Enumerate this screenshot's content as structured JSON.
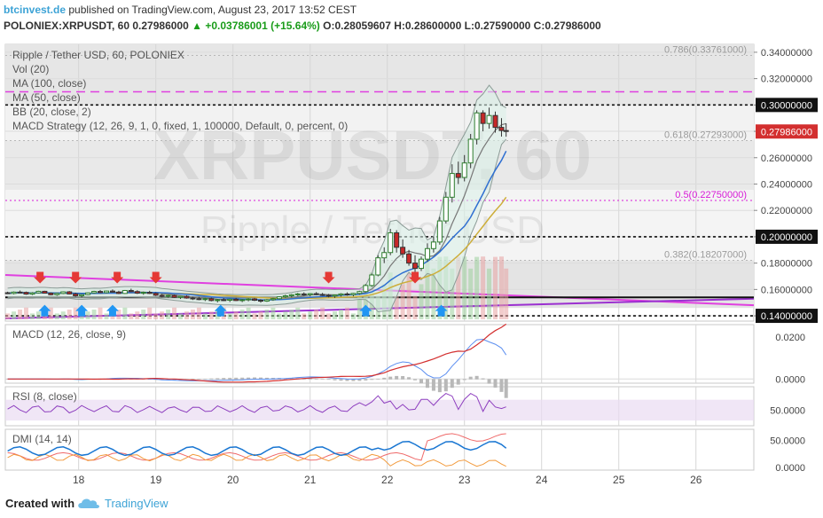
{
  "header": {
    "site": "btcinvest.de",
    "published": "published on TradingView.com, August 23, 2017 13:52 CEST",
    "symbol": "POLONIEX:XRPUSDT, 60",
    "last": "0.27986000",
    "change_arrow": "▲",
    "change": "+0.03786001 (+15.64%)",
    "ohlc": "O:0.28059607 H:0.28600000 L:0.27590000 C:0.27986000"
  },
  "footer": {
    "created_with": "Created with",
    "tradingview": "TradingView"
  },
  "chart_data": {
    "type": "candlestick",
    "watermark": "XRPUSDT, 60",
    "watermark_sub": "Ripple / Tether USD",
    "main": {
      "title": "Ripple / Tether USD, 60, POLONIEX",
      "indicators": [
        "Vol (20)",
        "MA (100, close)",
        "MA (50, close)",
        "BB (20, close, 2)",
        "MACD Strategy (12, 26, 9, 1, 0, fixed, 1, 100000, Default, 0, percent, 0)"
      ],
      "ylim": [
        0.136,
        0.346
      ],
      "yticks": [
        "0.34000000",
        "0.32000000",
        "0.30000000",
        "0.28000000",
        "0.26000000",
        "0.24000000",
        "0.22000000",
        "0.20000000",
        "0.18000000",
        "0.16000000",
        "0.14000000"
      ],
      "price_tag": "0.27986000",
      "fib_levels": [
        {
          "label": "0.786(0.33761000)",
          "value": 0.33761
        },
        {
          "label": "0.618(0.27293000)",
          "value": 0.27293
        },
        {
          "label": "0.5(0.22750000)",
          "value": 0.2275
        },
        {
          "label": "0.382(0.18207000)",
          "value": 0.18207
        }
      ],
      "hlines": [
        0.3,
        0.2,
        0.14
      ],
      "resistance_dashed": 0.31,
      "x_labels": [
        "18",
        "19",
        "20",
        "21",
        "22",
        "23",
        "24",
        "25",
        "26"
      ],
      "x_label_days": [
        18,
        19,
        20,
        21,
        22,
        23,
        24,
        25,
        26
      ],
      "x_range": [
        17.05,
        26.75
      ],
      "candles": [
        [
          17.08,
          0.1575,
          0.1583,
          0.1565,
          0.157
        ],
        [
          17.16,
          0.157,
          0.1585,
          0.1563,
          0.158
        ],
        [
          17.24,
          0.158,
          0.1592,
          0.1572,
          0.1578
        ],
        [
          17.32,
          0.1578,
          0.1584,
          0.156,
          0.1565
        ],
        [
          17.4,
          0.1565,
          0.158,
          0.1558,
          0.1574
        ],
        [
          17.48,
          0.1574,
          0.159,
          0.157,
          0.1586
        ],
        [
          17.56,
          0.1586,
          0.159,
          0.157,
          0.1572
        ],
        [
          17.64,
          0.1572,
          0.1578,
          0.1555,
          0.156
        ],
        [
          17.72,
          0.156,
          0.1575,
          0.1552,
          0.157
        ],
        [
          17.8,
          0.157,
          0.1586,
          0.1565,
          0.1582
        ],
        [
          17.88,
          0.1582,
          0.1588,
          0.1562,
          0.1566
        ],
        [
          17.96,
          0.1566,
          0.1575,
          0.1545,
          0.1552
        ],
        [
          18.04,
          0.1552,
          0.1566,
          0.154,
          0.1561
        ],
        [
          18.12,
          0.1561,
          0.1578,
          0.1556,
          0.1574
        ],
        [
          18.2,
          0.1574,
          0.159,
          0.1568,
          0.1585
        ],
        [
          18.28,
          0.1585,
          0.1596,
          0.1572,
          0.1576
        ],
        [
          18.36,
          0.1576,
          0.1592,
          0.157,
          0.1588
        ],
        [
          18.44,
          0.1588,
          0.16,
          0.1578,
          0.158
        ],
        [
          18.52,
          0.158,
          0.159,
          0.1565,
          0.157
        ],
        [
          18.6,
          0.157,
          0.1596,
          0.1566,
          0.1592
        ],
        [
          18.68,
          0.1592,
          0.1606,
          0.158,
          0.1584
        ],
        [
          18.76,
          0.1584,
          0.1594,
          0.1566,
          0.1572
        ],
        [
          18.84,
          0.1572,
          0.1584,
          0.156,
          0.1578
        ],
        [
          18.92,
          0.1578,
          0.159,
          0.1566,
          0.157
        ],
        [
          19.0,
          0.157,
          0.1578,
          0.155,
          0.1556
        ],
        [
          19.08,
          0.1556,
          0.1566,
          0.154,
          0.1548
        ],
        [
          19.16,
          0.1548,
          0.156,
          0.1538,
          0.1555
        ],
        [
          19.24,
          0.1555,
          0.1562,
          0.1536,
          0.154
        ],
        [
          19.32,
          0.154,
          0.1552,
          0.1528,
          0.1548
        ],
        [
          19.4,
          0.1548,
          0.1556,
          0.153,
          0.1535
        ],
        [
          19.48,
          0.1535,
          0.1545,
          0.152,
          0.153
        ],
        [
          19.56,
          0.153,
          0.1544,
          0.1518,
          0.1524
        ],
        [
          19.64,
          0.1524,
          0.1536,
          0.1512,
          0.153
        ],
        [
          19.72,
          0.153,
          0.1538,
          0.151,
          0.1516
        ],
        [
          19.8,
          0.1516,
          0.1528,
          0.1502,
          0.1522
        ],
        [
          19.88,
          0.1522,
          0.1535,
          0.1512,
          0.1518
        ],
        [
          19.96,
          0.1518,
          0.153,
          0.1505,
          0.1526
        ],
        [
          20.04,
          0.1526,
          0.1536,
          0.1512,
          0.1516
        ],
        [
          20.12,
          0.1516,
          0.1528,
          0.1504,
          0.1522
        ],
        [
          20.2,
          0.1522,
          0.1534,
          0.151,
          0.1528
        ],
        [
          20.28,
          0.1528,
          0.1536,
          0.1512,
          0.1518
        ],
        [
          20.36,
          0.1518,
          0.1526,
          0.15,
          0.1512
        ],
        [
          20.44,
          0.1512,
          0.1528,
          0.1506,
          0.1522
        ],
        [
          20.52,
          0.1522,
          0.1536,
          0.1514,
          0.153
        ],
        [
          20.6,
          0.153,
          0.1548,
          0.1524,
          0.1544
        ],
        [
          20.68,
          0.1544,
          0.156,
          0.1536,
          0.1552
        ],
        [
          20.76,
          0.1552,
          0.1566,
          0.154,
          0.156
        ],
        [
          20.84,
          0.156,
          0.1574,
          0.155,
          0.1566
        ],
        [
          20.92,
          0.1566,
          0.1578,
          0.1552,
          0.156
        ],
        [
          21.0,
          0.156,
          0.1572,
          0.1548,
          0.1568
        ],
        [
          21.08,
          0.1568,
          0.158,
          0.1556,
          0.1562
        ],
        [
          21.16,
          0.1562,
          0.1574,
          0.155,
          0.1556
        ],
        [
          21.24,
          0.1556,
          0.1566,
          0.154,
          0.155
        ],
        [
          21.32,
          0.155,
          0.1562,
          0.1536,
          0.1558
        ],
        [
          21.4,
          0.1558,
          0.1572,
          0.1546,
          0.1566
        ],
        [
          21.48,
          0.1566,
          0.1578,
          0.1552,
          0.156
        ],
        [
          21.56,
          0.156,
          0.1574,
          0.1548,
          0.157
        ],
        [
          21.64,
          0.157,
          0.159,
          0.156,
          0.1584
        ],
        [
          21.72,
          0.1584,
          0.164,
          0.1578,
          0.163
        ],
        [
          21.8,
          0.163,
          0.172,
          0.162,
          0.171
        ],
        [
          21.88,
          0.171,
          0.186,
          0.17,
          0.184
        ],
        [
          21.96,
          0.184,
          0.192,
          0.18,
          0.188
        ],
        [
          22.04,
          0.188,
          0.206,
          0.186,
          0.203
        ],
        [
          22.12,
          0.203,
          0.205,
          0.188,
          0.192
        ],
        [
          22.2,
          0.192,
          0.198,
          0.184,
          0.187
        ],
        [
          22.28,
          0.187,
          0.19,
          0.178,
          0.18
        ],
        [
          22.36,
          0.18,
          0.186,
          0.173,
          0.176
        ],
        [
          22.44,
          0.176,
          0.185,
          0.174,
          0.183
        ],
        [
          22.52,
          0.183,
          0.195,
          0.181,
          0.191
        ],
        [
          22.6,
          0.191,
          0.2,
          0.188,
          0.196
        ],
        [
          22.68,
          0.196,
          0.215,
          0.194,
          0.212
        ],
        [
          22.76,
          0.212,
          0.234,
          0.21,
          0.23
        ],
        [
          22.84,
          0.23,
          0.255,
          0.226,
          0.248
        ],
        [
          22.92,
          0.248,
          0.257,
          0.24,
          0.245
        ],
        [
          23.0,
          0.245,
          0.262,
          0.242,
          0.256
        ],
        [
          23.08,
          0.256,
          0.278,
          0.252,
          0.274
        ],
        [
          23.16,
          0.274,
          0.296,
          0.27,
          0.294
        ],
        [
          23.24,
          0.294,
          0.296,
          0.28,
          0.286
        ],
        [
          23.32,
          0.286,
          0.298,
          0.282,
          0.292
        ],
        [
          23.4,
          0.292,
          0.295,
          0.279,
          0.283
        ],
        [
          23.48,
          0.283,
          0.29,
          0.276,
          0.2806
        ],
        [
          23.54,
          0.2806,
          0.286,
          0.2759,
          0.2799
        ]
      ],
      "sell_markers": [
        17.5,
        17.96,
        18.5,
        19.0,
        21.24,
        22.36
      ],
      "buy_markers": [
        17.56,
        18.04,
        18.44,
        19.84,
        21.72,
        22.7
      ],
      "volume_ylim": [
        0,
        30
      ]
    },
    "macd": {
      "title": "MACD (12, 26, close, 9)",
      "yticks": [
        "0.0200",
        "0.0000"
      ],
      "ylim": [
        -0.002,
        0.026
      ]
    },
    "rsi": {
      "title": "RSI (8, close)",
      "yticks": [
        "50.0000"
      ],
      "ylim": [
        20,
        95
      ]
    },
    "dmi": {
      "title": "DMI (14, 14)",
      "yticks": [
        "50.0000",
        "0.0000"
      ],
      "ylim": [
        -5,
        70
      ]
    }
  },
  "colors": {
    "up": "#2e7d2e",
    "down": "#c62828",
    "buy": "#2196f3",
    "sell": "#e53935",
    "ma100": "#cdae3a",
    "ma50": "#2f6fd1",
    "bb": "#8b9b96",
    "bb_fill": "#d8f0e8",
    "fib_pink": "#d81bd8",
    "trend_magenta": "#e040e0",
    "macd_blue": "#5b8ef0",
    "macd_red": "#d32f2f",
    "rsi": "#8e3fbf",
    "dmi_blue": "#1976d2",
    "dmi_red": "#ef6a6a",
    "dmi_orange": "#f29a3c"
  }
}
